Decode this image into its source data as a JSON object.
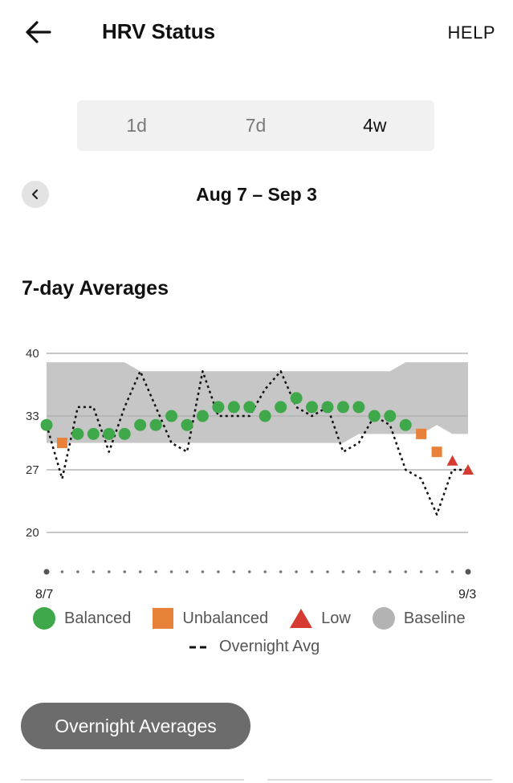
{
  "header": {
    "title": "HRV Status",
    "help_label": "HELP",
    "back_icon": "arrow-left-icon"
  },
  "tabs": [
    {
      "label": "1d",
      "active": false
    },
    {
      "label": "7d",
      "active": false
    },
    {
      "label": "4w",
      "active": true
    }
  ],
  "date_range": {
    "label": "Aug 7 – Sep 3",
    "prev_icon": "chevron-left-icon"
  },
  "section_title": "7-day Averages",
  "chart_data": {
    "type": "scatter",
    "title": "7-day Averages",
    "x_start_label": "8/7",
    "x_end_label": "9/3",
    "ylim": [
      20,
      40
    ],
    "y_ticks": [
      40,
      33,
      27,
      20
    ],
    "grid": true,
    "baseline": {
      "name": "Baseline",
      "low": [
        30,
        30,
        30,
        30,
        30,
        30,
        30,
        30,
        30,
        30,
        30,
        30,
        30,
        30,
        30,
        30,
        30,
        30,
        30,
        30,
        31,
        31,
        31,
        31,
        31,
        32,
        31,
        31
      ],
      "high": [
        39,
        39,
        39,
        39,
        39,
        39,
        38,
        38,
        38,
        38,
        38,
        38,
        38,
        38,
        38,
        38,
        38,
        38,
        38,
        38,
        38,
        38,
        38,
        39,
        39,
        39,
        39,
        39
      ]
    },
    "series": [
      {
        "name": "Overnight Avg",
        "values": [
          32,
          26,
          34,
          34,
          29,
          34,
          38,
          34,
          30,
          29,
          38,
          33,
          33,
          33,
          36,
          38,
          34,
          33,
          34,
          29,
          30,
          33,
          32,
          27,
          26,
          22,
          27,
          27
        ]
      }
    ],
    "points": [
      {
        "v": 32,
        "s": "Balanced"
      },
      {
        "v": 30,
        "s": "Unbalanced"
      },
      {
        "v": 31,
        "s": "Balanced"
      },
      {
        "v": 31,
        "s": "Balanced"
      },
      {
        "v": 31,
        "s": "Balanced"
      },
      {
        "v": 31,
        "s": "Balanced"
      },
      {
        "v": 32,
        "s": "Balanced"
      },
      {
        "v": 32,
        "s": "Balanced"
      },
      {
        "v": 33,
        "s": "Balanced"
      },
      {
        "v": 32,
        "s": "Balanced"
      },
      {
        "v": 33,
        "s": "Balanced"
      },
      {
        "v": 34,
        "s": "Balanced"
      },
      {
        "v": 34,
        "s": "Balanced"
      },
      {
        "v": 34,
        "s": "Balanced"
      },
      {
        "v": 33,
        "s": "Balanced"
      },
      {
        "v": 34,
        "s": "Balanced"
      },
      {
        "v": 35,
        "s": "Balanced"
      },
      {
        "v": 34,
        "s": "Balanced"
      },
      {
        "v": 34,
        "s": "Balanced"
      },
      {
        "v": 34,
        "s": "Balanced"
      },
      {
        "v": 34,
        "s": "Balanced"
      },
      {
        "v": 33,
        "s": "Balanced"
      },
      {
        "v": 33,
        "s": "Balanced"
      },
      {
        "v": 32,
        "s": "Balanced"
      },
      {
        "v": 31,
        "s": "Unbalanced"
      },
      {
        "v": 29,
        "s": "Unbalanced"
      },
      {
        "v": 28,
        "s": "Low"
      },
      {
        "v": 27,
        "s": "Low"
      }
    ]
  },
  "legend": [
    {
      "label": "Balanced",
      "color": "#3ea84a",
      "shape": "circle"
    },
    {
      "label": "Unbalanced",
      "color": "#e8823a",
      "shape": "square"
    },
    {
      "label": "Low",
      "color": "#d63b32",
      "shape": "triangle"
    },
    {
      "label": "Baseline",
      "color": "#b3b3b3",
      "shape": "circle"
    }
  ],
  "legend_line": {
    "label": "Overnight Avg"
  },
  "overnight_button": {
    "label": "Overnight Averages"
  }
}
